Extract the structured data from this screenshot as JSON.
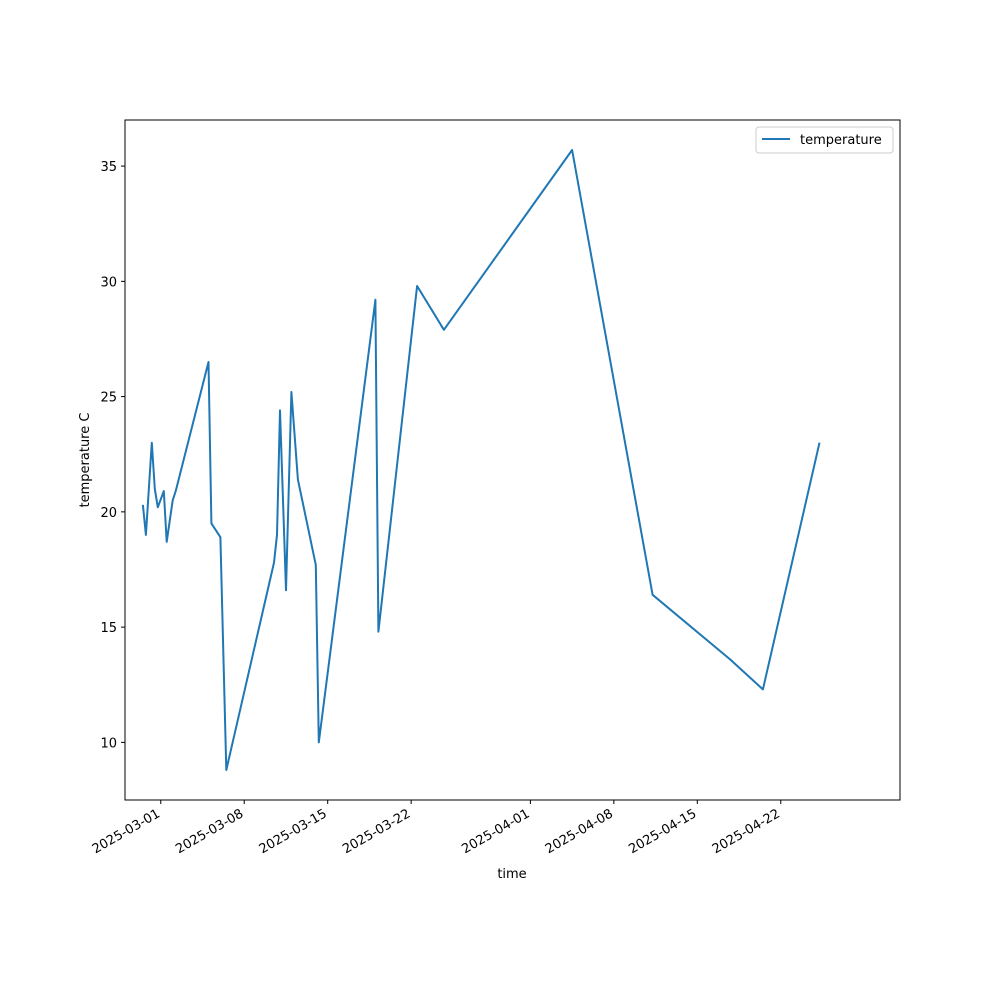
{
  "chart_data": {
    "type": "line",
    "xlabel": "time",
    "ylabel": "temperature C",
    "x_scale": "date",
    "xlim": [
      "2025-02-26",
      "2025-05-02"
    ],
    "ylim": [
      7.5,
      37.0
    ],
    "grid": false,
    "legend_position": "top-right",
    "x_ticks": [
      "2025-03-01",
      "2025-03-08",
      "2025-03-15",
      "2025-03-22",
      "2025-04-01",
      "2025-04-08",
      "2025-04-15",
      "2025-04-22"
    ],
    "y_ticks": [
      10,
      15,
      20,
      25,
      30,
      35
    ],
    "series": [
      {
        "name": "temperature",
        "color": "#1f77b4",
        "x": [
          "2025-02-27 12:00",
          "2025-02-27 18:00",
          "2025-02-28 06:00",
          "2025-02-28 12:00",
          "2025-02-28 18:00",
          "2025-03-01 06:00",
          "2025-03-01 12:00",
          "2025-03-02 00:00",
          "2025-03-02 06:00",
          "2025-03-05 00:00",
          "2025-03-05 06:00",
          "2025-03-06 00:00",
          "2025-03-06 12:00",
          "2025-03-10 12:00",
          "2025-03-10 18:00",
          "2025-03-11 00:00",
          "2025-03-11 12:00",
          "2025-03-11 23:00",
          "2025-03-12 12:00",
          "2025-03-14 00:00",
          "2025-03-14 06:00",
          "2025-03-19 00:00",
          "2025-03-19 06:00",
          "2025-03-22 12:00",
          "2025-03-24 18:00",
          "2025-04-04 12:00",
          "2025-04-11 06:00",
          "2025-04-17 18:00",
          "2025-04-20 12:00",
          "2025-04-25 06:00"
        ],
        "y": [
          20.3,
          19.0,
          23.0,
          21.0,
          20.2,
          20.9,
          18.7,
          20.5,
          20.9,
          26.5,
          19.5,
          18.9,
          8.8,
          17.8,
          19.0,
          24.4,
          16.6,
          25.2,
          21.4,
          17.7,
          10.0,
          29.2,
          14.8,
          29.8,
          27.9,
          35.7,
          16.4,
          13.6,
          12.3,
          23.0
        ]
      }
    ]
  }
}
